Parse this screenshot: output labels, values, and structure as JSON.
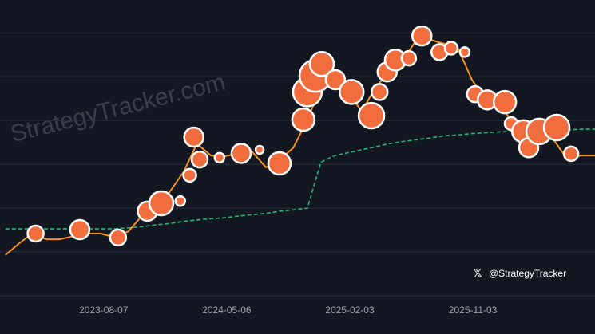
{
  "chart_data": {
    "type": "line",
    "watermark": "StrategyTracker.com",
    "credit": "@StrategyTracker",
    "xlim": [
      "2022-12-20",
      "2026-08-01"
    ],
    "xticks": [
      "2023-08-07",
      "2024-05-06",
      "2025-02-03",
      "2025-11-03"
    ],
    "ylim": [
      0,
      6.75
    ],
    "ygrid": [
      0,
      1,
      2,
      3,
      4,
      5,
      6
    ],
    "series": [
      {
        "color": "#2db37a",
        "dashed": true,
        "x": [
          "2023-01-01",
          "2023-02-01",
          "2023-03-01",
          "2023-04-01",
          "2023-05-01",
          "2023-06-01",
          "2023-07-01",
          "2023-08-01",
          "2023-09-01",
          "2023-10-01",
          "2023-11-01",
          "2023-12-01",
          "2024-01-01",
          "2024-02-01",
          "2024-03-01",
          "2024-04-01",
          "2024-05-01",
          "2024-06-01",
          "2024-07-01",
          "2024-08-01",
          "2024-09-01",
          "2024-10-01",
          "2024-11-01",
          "2024-12-01",
          "2025-01-01",
          "2025-02-01",
          "2025-03-01",
          "2025-04-01",
          "2025-05-01",
          "2025-06-01",
          "2025-07-01",
          "2025-08-01",
          "2025-09-01",
          "2025-10-01",
          "2025-11-01",
          "2025-12-01",
          "2026-01-01",
          "2026-02-01",
          "2026-03-01",
          "2026-04-01",
          "2026-05-01",
          "2026-06-01",
          "2026-07-01",
          "2026-08-01"
        ],
        "values": [
          1.53,
          1.53,
          1.53,
          1.53,
          1.53,
          1.53,
          1.53,
          1.53,
          1.53,
          1.55,
          1.58,
          1.62,
          1.65,
          1.7,
          1.73,
          1.76,
          1.78,
          1.82,
          1.85,
          1.88,
          1.93,
          1.96,
          2.0,
          3.05,
          3.2,
          3.27,
          3.33,
          3.4,
          3.47,
          3.52,
          3.56,
          3.6,
          3.65,
          3.67,
          3.7,
          3.72,
          3.74,
          3.75,
          3.76,
          3.77,
          3.78,
          3.79,
          3.8,
          3.8
        ]
      },
      {
        "color": "#f7931a",
        "dashed": false,
        "x": [
          "2023-01-01",
          "2023-02-01",
          "2023-03-01",
          "2023-04-01",
          "2023-05-01",
          "2023-06-01",
          "2023-07-01",
          "2023-08-01",
          "2023-09-01",
          "2023-10-01",
          "2023-11-01",
          "2023-12-01",
          "2024-01-01",
          "2024-02-01",
          "2024-03-01",
          "2024-04-01",
          "2024-05-01",
          "2024-06-01",
          "2024-07-01",
          "2024-08-01",
          "2024-09-01",
          "2024-10-01",
          "2024-11-01",
          "2024-12-01",
          "2025-01-01",
          "2025-02-01",
          "2025-03-01",
          "2025-04-01",
          "2025-05-01",
          "2025-06-01",
          "2025-07-01",
          "2025-08-01",
          "2025-09-01",
          "2025-10-01",
          "2025-11-01",
          "2025-12-01",
          "2026-01-01",
          "2026-02-01",
          "2026-03-01",
          "2026-04-01",
          "2026-05-01",
          "2026-06-01",
          "2026-07-01",
          "2026-08-01"
        ],
        "values": [
          0.93,
          1.2,
          1.42,
          1.29,
          1.29,
          1.36,
          1.42,
          1.42,
          1.33,
          1.47,
          1.84,
          1.98,
          2.38,
          2.84,
          3.47,
          3.2,
          3.18,
          3.25,
          3.29,
          2.93,
          3.11,
          3.38,
          4.02,
          4.75,
          5.02,
          4.65,
          4.2,
          4.75,
          5.11,
          5.38,
          5.84,
          5.84,
          5.75,
          5.65,
          4.93,
          4.47,
          4.38,
          3.93,
          3.75,
          3.65,
          3.56,
          3.11,
          3.2,
          3.2
        ]
      },
      {
        "color": "#f26d3d",
        "type": "bubble",
        "x": [
          "2023-03-09",
          "2023-06-15",
          "2023-09-08",
          "2023-11-12",
          "2023-12-13",
          "2024-01-24",
          "2024-02-14",
          "2024-02-23",
          "2024-03-07",
          "2024-04-20",
          "2024-06-07",
          "2024-07-18",
          "2024-08-31",
          "2024-10-23",
          "2024-11-01",
          "2024-11-19",
          "2024-12-03",
          "2025-01-02",
          "2025-02-07",
          "2025-03-23",
          "2025-04-10",
          "2025-04-27",
          "2025-05-15",
          "2025-06-14",
          "2025-07-13",
          "2025-08-21",
          "2025-09-16",
          "2025-10-16",
          "2025-11-08",
          "2025-12-05",
          "2026-01-13",
          "2026-01-27",
          "2026-02-23",
          "2026-03-07",
          "2026-03-30",
          "2026-05-08",
          "2026-06-09"
        ],
        "values": [
          1.42,
          1.51,
          1.33,
          1.93,
          2.11,
          2.16,
          2.75,
          3.62,
          3.11,
          3.15,
          3.25,
          3.33,
          3.02,
          4.02,
          4.65,
          5.02,
          5.29,
          4.93,
          4.65,
          4.11,
          4.65,
          5.11,
          5.38,
          5.42,
          5.93,
          5.56,
          5.65,
          5.56,
          4.6,
          4.47,
          4.42,
          3.93,
          3.75,
          3.38,
          3.75,
          3.84,
          3.24
        ],
        "sizes": [
          10,
          12,
          10,
          12,
          15,
          6,
          8,
          12,
          10,
          6,
          12,
          5,
          14,
          14,
          18,
          20,
          15,
          12,
          15,
          16,
          10,
          12,
          13,
          9,
          12,
          10,
          8,
          6,
          10,
          12,
          14,
          8,
          14,
          12,
          16,
          16,
          9
        ]
      }
    ]
  }
}
